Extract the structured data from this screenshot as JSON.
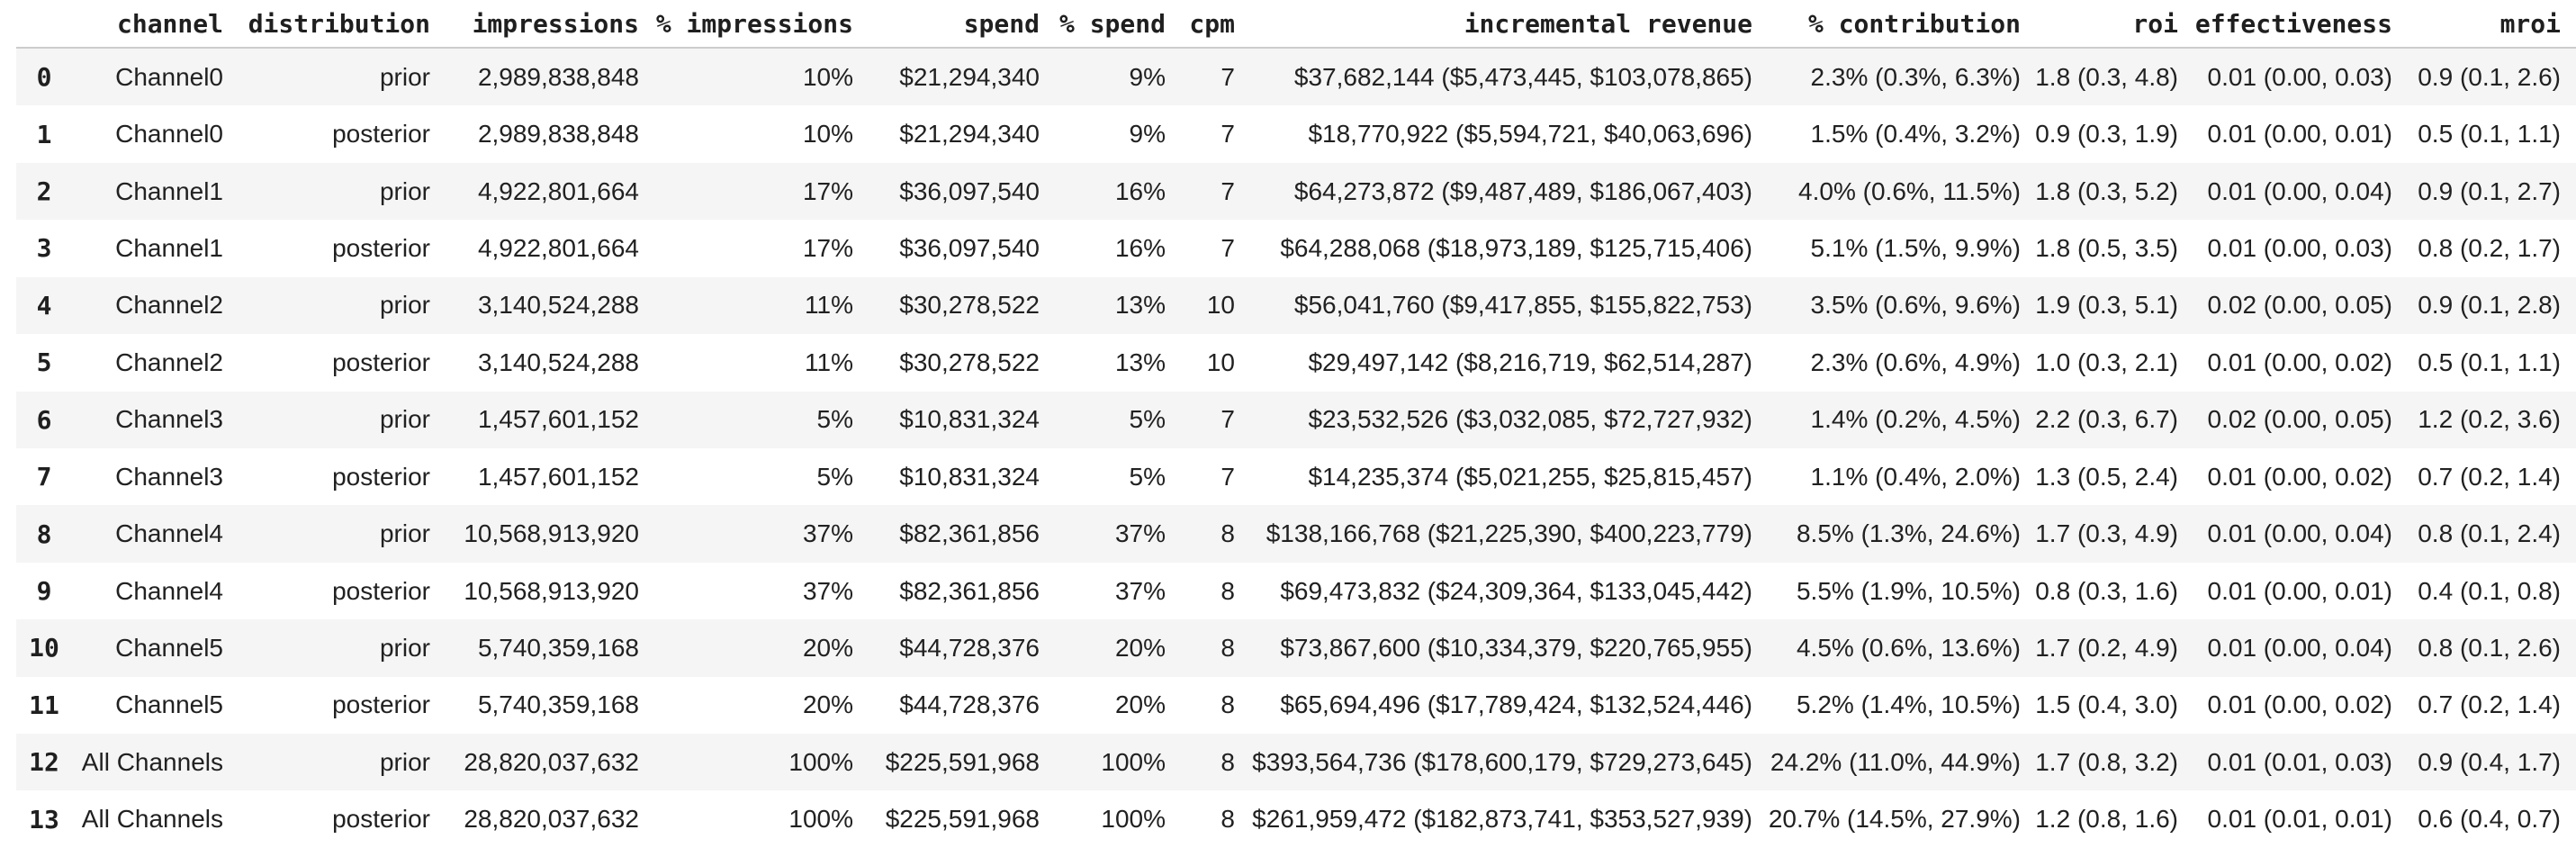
{
  "chart_data": {
    "type": "table",
    "columns": [
      "",
      "channel",
      "distribution",
      "impressions",
      "% impressions",
      "spend",
      "% spend",
      "cpm",
      "incremental revenue",
      "% contribution",
      "roi",
      "effectiveness",
      "mroi"
    ],
    "rows": [
      [
        "0",
        "Channel0",
        "prior",
        "2,989,838,848",
        "10%",
        "$21,294,340",
        "9%",
        "7",
        "$37,682,144 ($5,473,445, $103,078,865)",
        "2.3% (0.3%, 6.3%)",
        "1.8 (0.3, 4.8)",
        "0.01 (0.00, 0.03)",
        "0.9 (0.1, 2.6)"
      ],
      [
        "1",
        "Channel0",
        "posterior",
        "2,989,838,848",
        "10%",
        "$21,294,340",
        "9%",
        "7",
        "$18,770,922 ($5,594,721, $40,063,696)",
        "1.5% (0.4%, 3.2%)",
        "0.9 (0.3, 1.9)",
        "0.01 (0.00, 0.01)",
        "0.5 (0.1, 1.1)"
      ],
      [
        "2",
        "Channel1",
        "prior",
        "4,922,801,664",
        "17%",
        "$36,097,540",
        "16%",
        "7",
        "$64,273,872 ($9,487,489, $186,067,403)",
        "4.0% (0.6%, 11.5%)",
        "1.8 (0.3, 5.2)",
        "0.01 (0.00, 0.04)",
        "0.9 (0.1, 2.7)"
      ],
      [
        "3",
        "Channel1",
        "posterior",
        "4,922,801,664",
        "17%",
        "$36,097,540",
        "16%",
        "7",
        "$64,288,068 ($18,973,189, $125,715,406)",
        "5.1% (1.5%, 9.9%)",
        "1.8 (0.5, 3.5)",
        "0.01 (0.00, 0.03)",
        "0.8 (0.2, 1.7)"
      ],
      [
        "4",
        "Channel2",
        "prior",
        "3,140,524,288",
        "11%",
        "$30,278,522",
        "13%",
        "10",
        "$56,041,760 ($9,417,855, $155,822,753)",
        "3.5% (0.6%, 9.6%)",
        "1.9 (0.3, 5.1)",
        "0.02 (0.00, 0.05)",
        "0.9 (0.1, 2.8)"
      ],
      [
        "5",
        "Channel2",
        "posterior",
        "3,140,524,288",
        "11%",
        "$30,278,522",
        "13%",
        "10",
        "$29,497,142 ($8,216,719, $62,514,287)",
        "2.3% (0.6%, 4.9%)",
        "1.0 (0.3, 2.1)",
        "0.01 (0.00, 0.02)",
        "0.5 (0.1, 1.1)"
      ],
      [
        "6",
        "Channel3",
        "prior",
        "1,457,601,152",
        "5%",
        "$10,831,324",
        "5%",
        "7",
        "$23,532,526 ($3,032,085, $72,727,932)",
        "1.4% (0.2%, 4.5%)",
        "2.2 (0.3, 6.7)",
        "0.02 (0.00, 0.05)",
        "1.2 (0.2, 3.6)"
      ],
      [
        "7",
        "Channel3",
        "posterior",
        "1,457,601,152",
        "5%",
        "$10,831,324",
        "5%",
        "7",
        "$14,235,374 ($5,021,255, $25,815,457)",
        "1.1% (0.4%, 2.0%)",
        "1.3 (0.5, 2.4)",
        "0.01 (0.00, 0.02)",
        "0.7 (0.2, 1.4)"
      ],
      [
        "8",
        "Channel4",
        "prior",
        "10,568,913,920",
        "37%",
        "$82,361,856",
        "37%",
        "8",
        "$138,166,768 ($21,225,390, $400,223,779)",
        "8.5% (1.3%, 24.6%)",
        "1.7 (0.3, 4.9)",
        "0.01 (0.00, 0.04)",
        "0.8 (0.1, 2.4)"
      ],
      [
        "9",
        "Channel4",
        "posterior",
        "10,568,913,920",
        "37%",
        "$82,361,856",
        "37%",
        "8",
        "$69,473,832 ($24,309,364, $133,045,442)",
        "5.5% (1.9%, 10.5%)",
        "0.8 (0.3, 1.6)",
        "0.01 (0.00, 0.01)",
        "0.4 (0.1, 0.8)"
      ],
      [
        "10",
        "Channel5",
        "prior",
        "5,740,359,168",
        "20%",
        "$44,728,376",
        "20%",
        "8",
        "$73,867,600 ($10,334,379, $220,765,955)",
        "4.5% (0.6%, 13.6%)",
        "1.7 (0.2, 4.9)",
        "0.01 (0.00, 0.04)",
        "0.8 (0.1, 2.6)"
      ],
      [
        "11",
        "Channel5",
        "posterior",
        "5,740,359,168",
        "20%",
        "$44,728,376",
        "20%",
        "8",
        "$65,694,496 ($17,789,424, $132,524,446)",
        "5.2% (1.4%, 10.5%)",
        "1.5 (0.4, 3.0)",
        "0.01 (0.00, 0.02)",
        "0.7 (0.2, 1.4)"
      ],
      [
        "12",
        "All Channels",
        "prior",
        "28,820,037,632",
        "100%",
        "$225,591,968",
        "100%",
        "8",
        "$393,564,736 ($178,600,179, $729,273,645)",
        "24.2% (11.0%, 44.9%)",
        "1.7 (0.8, 3.2)",
        "0.01 (0.01, 0.03)",
        "0.9 (0.4, 1.7)"
      ],
      [
        "13",
        "All Channels",
        "posterior",
        "28,820,037,632",
        "100%",
        "$225,591,968",
        "100%",
        "8",
        "$261,959,472 ($182,873,741, $353,527,939)",
        "20.7% (14.5%, 27.9%)",
        "1.2 (0.8, 1.6)",
        "0.01 (0.01, 0.01)",
        "0.6 (0.4, 0.7)"
      ]
    ]
  },
  "colors": {
    "row_stripe": "#f5f5f5",
    "header_border": "#cccccc",
    "body_text": "#212121",
    "header_text": "#1f1f1f"
  }
}
